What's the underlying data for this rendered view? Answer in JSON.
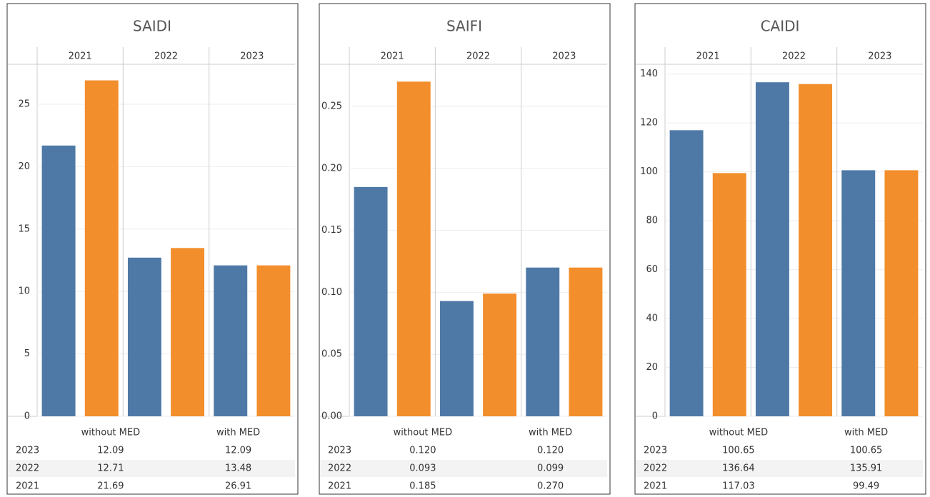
{
  "chart_data": [
    {
      "type": "bar",
      "title": "SAIDI",
      "categories": [
        "2021",
        "2022",
        "2023"
      ],
      "series": [
        {
          "name": "without MED",
          "color": "#4e79a7",
          "values": [
            21.69,
            12.71,
            12.09
          ]
        },
        {
          "name": "with MED",
          "color": "#f28e2b",
          "values": [
            26.91,
            13.48,
            12.09
          ]
        }
      ],
      "ylim": [
        0,
        28.2
      ],
      "yticks": [
        0,
        5,
        10,
        15,
        20,
        25
      ],
      "grid": true
    },
    {
      "type": "bar",
      "title": "SAIFI",
      "categories": [
        "2021",
        "2022",
        "2023"
      ],
      "series": [
        {
          "name": "without MED",
          "color": "#4e79a7",
          "values": [
            0.185,
            0.093,
            0.12
          ],
          "value_labels": [
            "0.185",
            "0.093",
            "0.120"
          ]
        },
        {
          "name": "with MED",
          "color": "#f28e2b",
          "values": [
            0.27,
            0.099,
            0.12
          ],
          "value_labels": [
            "0.270",
            "0.099",
            "0.120"
          ]
        }
      ],
      "ylim": [
        0,
        0.284
      ],
      "yticks": [
        {
          "value": 0,
          "label": "0.00"
        },
        {
          "value": 0.05,
          "label": "0.05"
        },
        {
          "value": 0.1,
          "label": "0.10"
        },
        {
          "value": 0.15,
          "label": "0.15"
        },
        {
          "value": 0.2,
          "label": "0.20"
        },
        {
          "value": 0.25,
          "label": "0.25"
        }
      ],
      "grid": true
    },
    {
      "type": "bar",
      "title": "CAIDI",
      "categories": [
        "2021",
        "2022",
        "2023"
      ],
      "series": [
        {
          "name": "without MED",
          "color": "#4e79a7",
          "values": [
            117.03,
            136.64,
            100.65
          ]
        },
        {
          "name": "with MED",
          "color": "#f28e2b",
          "values": [
            99.49,
            135.91,
            100.65
          ]
        }
      ],
      "ylim": [
        0,
        144
      ],
      "yticks": [
        0,
        20,
        40,
        60,
        80,
        100,
        120,
        140
      ],
      "grid": true
    }
  ]
}
